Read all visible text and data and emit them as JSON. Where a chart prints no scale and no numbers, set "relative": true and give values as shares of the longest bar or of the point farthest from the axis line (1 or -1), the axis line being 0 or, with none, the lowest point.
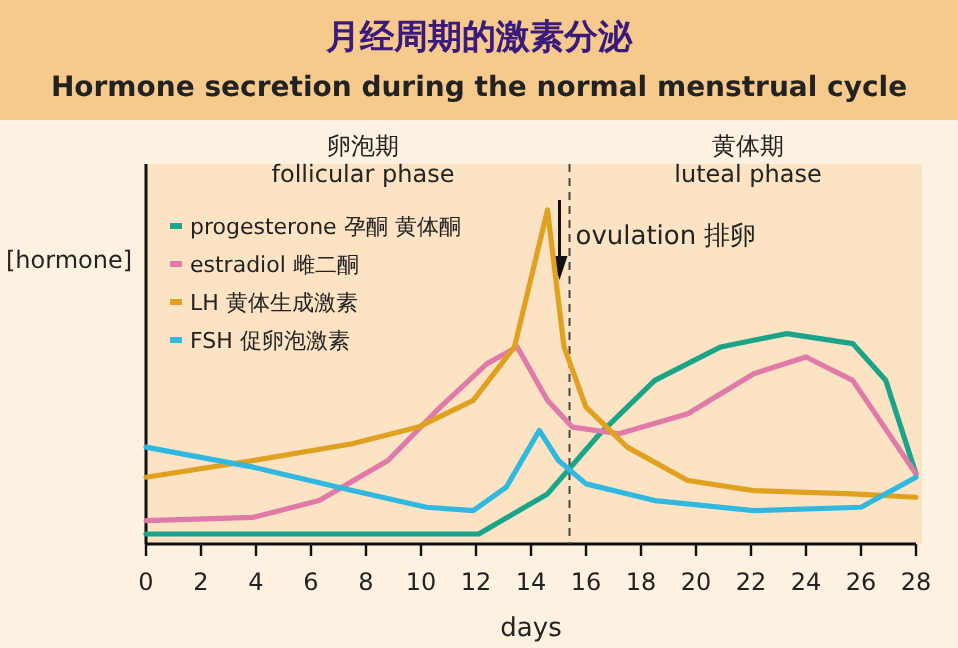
{
  "chart_data": {
    "type": "line",
    "relative": true,
    "title": "月经周期的激素分泌",
    "subtitle": "Hormone secretion during the normal menstrual cycle",
    "xlabel": "days",
    "ylabel": "[hormone]",
    "xlim": [
      0,
      28
    ],
    "xticks": [
      0,
      2,
      4,
      6,
      8,
      10,
      12,
      14,
      16,
      18,
      20,
      22,
      24,
      26,
      28
    ],
    "legend": "top left",
    "series": [
      {
        "name": "progesterone 孕酮 黄体酮",
        "color": "#1aa58a",
        "x": [
          0,
          4,
          8,
          12.1,
          14.6,
          16.5,
          18.5,
          20.9,
          23.3,
          25.7,
          26.9,
          28
        ],
        "values": [
          0.03,
          0.03,
          0.03,
          0.03,
          0.15,
          0.33,
          0.49,
          0.59,
          0.63,
          0.6,
          0.49,
          0.21
        ]
      },
      {
        "name": "estradiol 雌二酮",
        "color": "#e07aa8",
        "x": [
          0,
          3.9,
          6.3,
          8.8,
          10.7,
          12.4,
          13.5,
          14.6,
          15.5,
          17.2,
          19.7,
          22.1,
          24,
          25.7,
          28
        ],
        "values": [
          0.07,
          0.08,
          0.13,
          0.25,
          0.41,
          0.54,
          0.59,
          0.43,
          0.35,
          0.33,
          0.39,
          0.51,
          0.56,
          0.49,
          0.21
        ]
      },
      {
        "name": "LH 黄体生成激素",
        "color": "#e0a020",
        "x": [
          0,
          3.9,
          7.5,
          9.9,
          11.9,
          13.4,
          14.1,
          14.6,
          15.2,
          16,
          17.5,
          19.7,
          22.1,
          25.7,
          28
        ],
        "values": [
          0.2,
          0.25,
          0.3,
          0.35,
          0.43,
          0.59,
          0.83,
          1,
          0.59,
          0.41,
          0.29,
          0.19,
          0.16,
          0.15,
          0.14
        ]
      },
      {
        "name": "FSH 促卵泡激素",
        "color": "#30b8e0",
        "x": [
          0,
          3.9,
          7.5,
          10.2,
          11.9,
          13.1,
          14.3,
          15,
          16,
          18.5,
          22.1,
          26,
          28
        ],
        "values": [
          0.29,
          0.23,
          0.16,
          0.11,
          0.1,
          0.17,
          0.34,
          0.25,
          0.18,
          0.13,
          0.1,
          0.11,
          0.2
        ]
      }
    ],
    "ref_lines": [
      {
        "axis": "x",
        "value": 15.4,
        "label": "ovulation 排卵",
        "line_style": "dashed"
      }
    ],
    "annotations": [
      "卵泡期\nfollicular phase",
      "黄体期\nluteal phase"
    ]
  }
}
